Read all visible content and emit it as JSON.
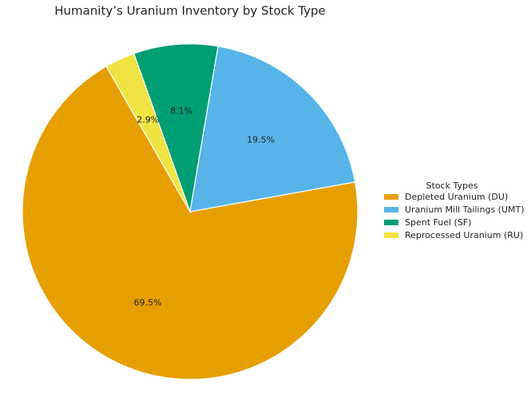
{
  "chart_data": {
    "type": "pie",
    "title": "Humanity’s Uranium Inventory by Stock Type",
    "categories": [
      "Depleted Uranium (DU)",
      "Uranium Mill Tailings (UMT)",
      "Spent Fuel (SF)",
      "Reprocessed Uranium (RU)"
    ],
    "values": [
      69.5,
      19.5,
      8.1,
      2.9
    ],
    "value_labels": [
      "69.5%",
      "19.5%",
      "8.1%",
      "2.9%"
    ],
    "colors": [
      "#E69F00",
      "#56B4E9",
      "#009E73",
      "#F0E442"
    ],
    "legend_title": "Stock Types",
    "legend_position": "right"
  }
}
